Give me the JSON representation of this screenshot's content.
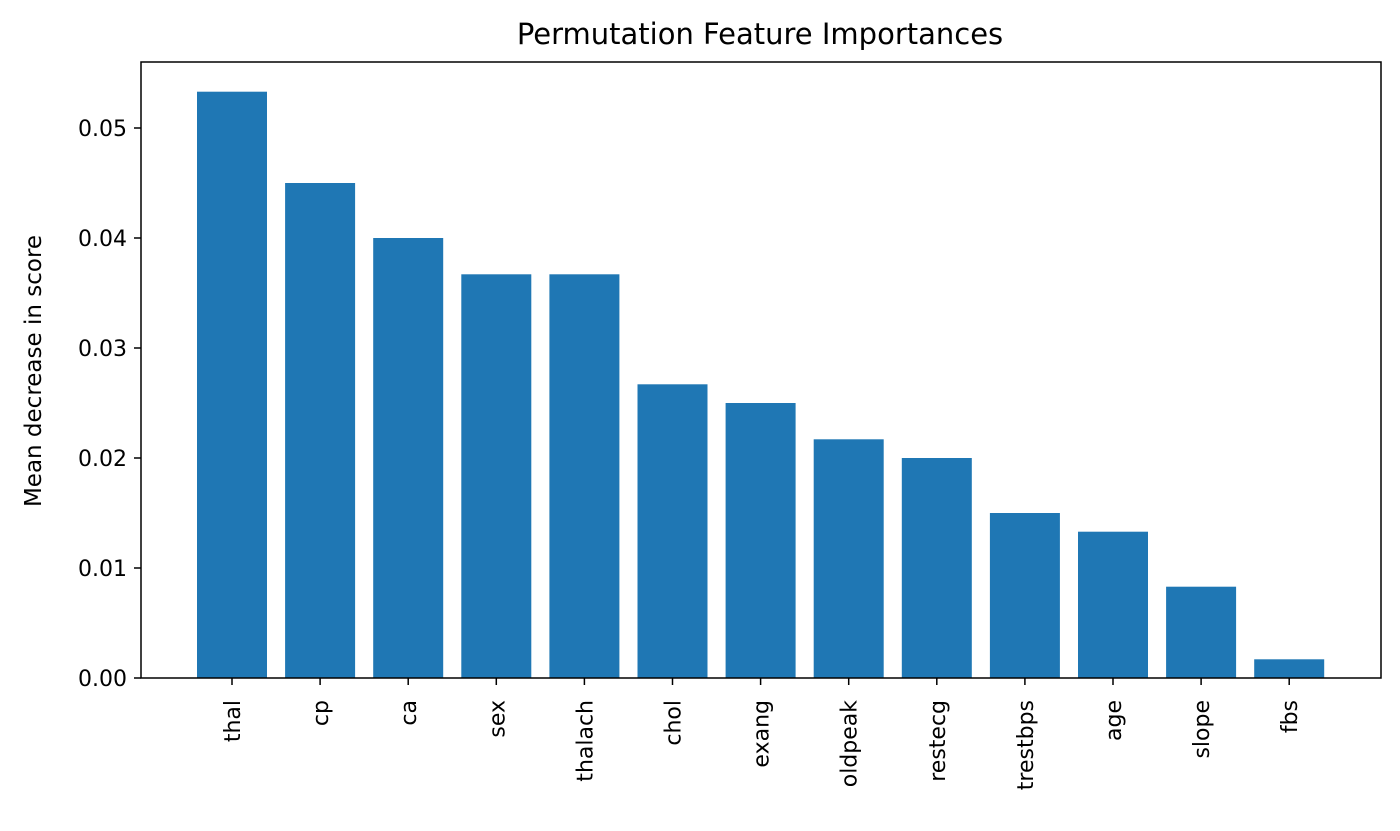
{
  "chart_data": {
    "type": "bar",
    "title": "Permutation Feature Importances",
    "xlabel": "",
    "ylabel": "Mean decrease in score",
    "categories": [
      "thal",
      "cp",
      "ca",
      "sex",
      "thalach",
      "chol",
      "exang",
      "oldpeak",
      "restecg",
      "trestbps",
      "age",
      "slope",
      "fbs"
    ],
    "values": [
      0.0533,
      0.045,
      0.04,
      0.0367,
      0.0367,
      0.0267,
      0.025,
      0.0217,
      0.02,
      0.015,
      0.0133,
      0.0083,
      0.0017
    ],
    "yticks": [
      "0.00",
      "0.01",
      "0.02",
      "0.03",
      "0.04",
      "0.05"
    ],
    "ylim": [
      0,
      0.056
    ],
    "grid": false,
    "bar_color": "#1f77b4"
  }
}
